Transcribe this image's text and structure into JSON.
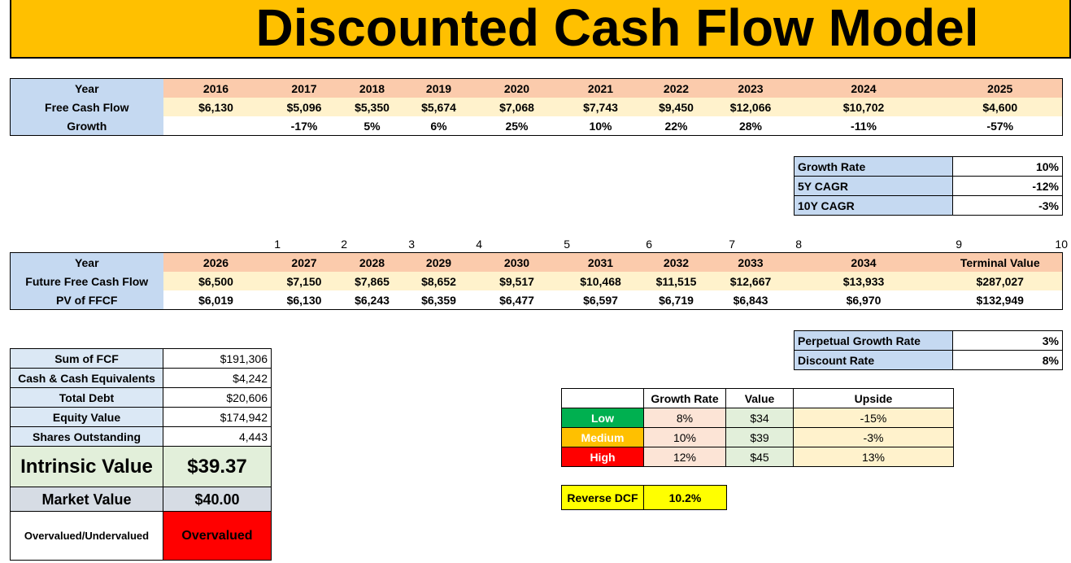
{
  "title": "Discounted Cash Flow Model",
  "historical": {
    "labels": {
      "year": "Year",
      "fcf": "Free Cash Flow",
      "growth": "Growth"
    },
    "years": [
      "2016",
      "2017",
      "2018",
      "2019",
      "2020",
      "2021",
      "2022",
      "2023",
      "2024",
      "2025"
    ],
    "fcf": [
      "$6,130",
      "$5,096",
      "$5,350",
      "$5,674",
      "$7,068",
      "$7,743",
      "$9,450",
      "$12,066",
      "$10,702",
      "$4,600"
    ],
    "growth": [
      "",
      "-17%",
      "5%",
      "6%",
      "25%",
      "10%",
      "22%",
      "28%",
      "-11%",
      "-57%"
    ]
  },
  "growth_rates": {
    "growth_rate_label": "Growth Rate",
    "growth_rate": "10%",
    "cagr5_label": "5Y CAGR",
    "cagr5": "-12%",
    "cagr10_label": "10Y CAGR",
    "cagr10": "-3%"
  },
  "periods": [
    "1",
    "2",
    "3",
    "4",
    "5",
    "6",
    "7",
    "8",
    "9",
    "10"
  ],
  "projection": {
    "labels": {
      "year": "Year",
      "ffcf": "Future Free Cash Flow",
      "pv": "PV of FFCF"
    },
    "years": [
      "2026",
      "2027",
      "2028",
      "2029",
      "2030",
      "2031",
      "2032",
      "2033",
      "2034",
      "Terminal Value"
    ],
    "ffcf": [
      "$6,500",
      "$7,150",
      "$7,865",
      "$8,652",
      "$9,517",
      "$10,468",
      "$11,515",
      "$12,667",
      "$13,933",
      "$287,027"
    ],
    "pv": [
      "$6,019",
      "$6,130",
      "$6,243",
      "$6,359",
      "$6,477",
      "$6,597",
      "$6,719",
      "$6,843",
      "$6,970",
      "$132,949"
    ]
  },
  "discount": {
    "perpetual_label": "Perpetual Growth Rate",
    "perpetual": "3%",
    "discount_label": "Discount Rate",
    "discount": "8%"
  },
  "valuation": {
    "sum_fcf_label": "Sum of FCF",
    "sum_fcf": "$191,306",
    "cash_label": "Cash & Cash Equivalents",
    "cash": "$4,242",
    "debt_label": "Total Debt",
    "debt": "$20,606",
    "equity_label": "Equity Value",
    "equity": "$174,942",
    "shares_label": "Shares Outstanding",
    "shares": "4,443",
    "intrinsic_label": "Intrinsic Value",
    "intrinsic": "$39.37",
    "market_label": "Market Value",
    "market": "$40.00",
    "status_label": "Overvalued/Undervalued",
    "status": "Overvalued"
  },
  "scenarios": {
    "headers": {
      "growth": "Growth Rate",
      "value": "Value",
      "upside": "Upside"
    },
    "rows": [
      {
        "name": "Low",
        "growth": "8%",
        "value": "$34",
        "upside": "-15%"
      },
      {
        "name": "Medium",
        "growth": "10%",
        "value": "$39",
        "upside": "-3%"
      },
      {
        "name": "High",
        "growth": "12%",
        "value": "$45",
        "upside": "13%"
      }
    ]
  },
  "reverse_dcf": {
    "label": "Reverse DCF",
    "value": "10.2%"
  },
  "colors": {
    "banner": "#ffc000",
    "low": "#00b050",
    "medium": "#ffc000",
    "high": "#ff0000",
    "overvalued": "#ff0000"
  }
}
